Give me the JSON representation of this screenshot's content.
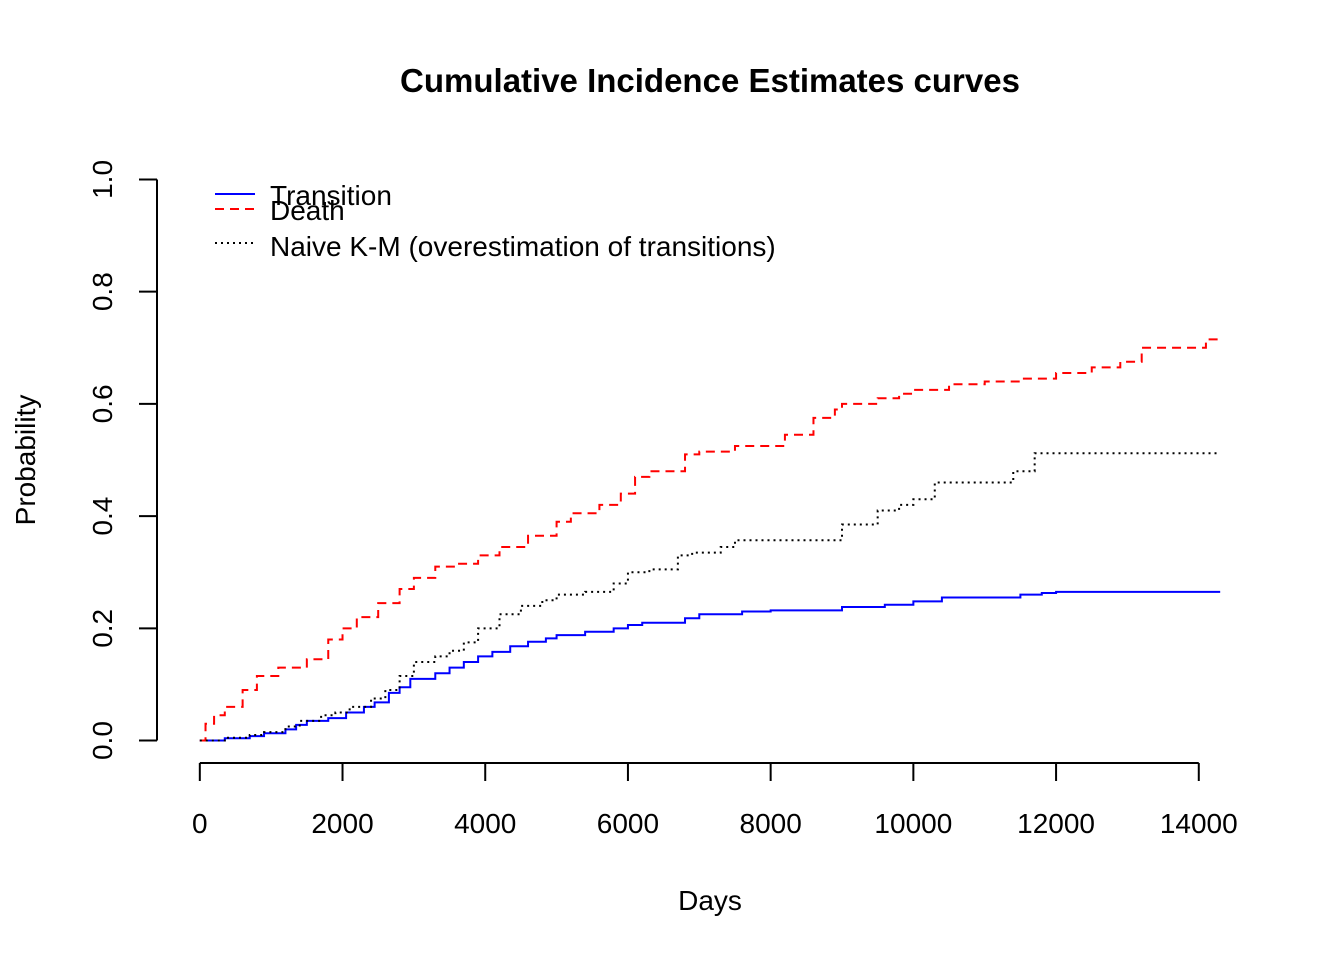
{
  "chart_data": {
    "type": "line",
    "title": "Cumulative Incidence Estimates curves",
    "xlabel": "Days",
    "ylabel": "Probability",
    "xlim": [
      -600,
      14900
    ],
    "ylim": [
      -0.04,
      1.04
    ],
    "x_ticks": [
      0,
      2000,
      4000,
      6000,
      8000,
      10000,
      12000,
      14000
    ],
    "x_tick_labels": [
      "0",
      "2000",
      "4000",
      "6000",
      "8000",
      "10000",
      "12000",
      "14000"
    ],
    "y_ticks": [
      0.0,
      0.2,
      0.4,
      0.6,
      0.8,
      1.0
    ],
    "y_tick_labels": [
      "0.0",
      "0.2",
      "0.4",
      "0.6",
      "0.8",
      "1.0"
    ],
    "grid": false,
    "legend_position": "top-left",
    "step": true,
    "series": [
      {
        "name": "Transition",
        "color": "#0000ff",
        "dash": "solid",
        "x": [
          0,
          350,
          700,
          900,
          1200,
          1350,
          1500,
          1800,
          2050,
          2300,
          2450,
          2650,
          2800,
          2950,
          3300,
          3500,
          3700,
          3900,
          4100,
          4350,
          4600,
          4850,
          5000,
          5400,
          5800,
          6000,
          6200,
          6800,
          7000,
          7600,
          8000,
          9000,
          9600,
          10000,
          10400,
          11500,
          11800,
          12000,
          14300
        ],
        "y": [
          0.0,
          0.004,
          0.008,
          0.013,
          0.02,
          0.028,
          0.035,
          0.04,
          0.05,
          0.06,
          0.068,
          0.085,
          0.095,
          0.11,
          0.12,
          0.13,
          0.14,
          0.15,
          0.158,
          0.168,
          0.176,
          0.182,
          0.188,
          0.194,
          0.2,
          0.206,
          0.21,
          0.218,
          0.225,
          0.23,
          0.232,
          0.238,
          0.242,
          0.248,
          0.255,
          0.26,
          0.263,
          0.265,
          0.265
        ]
      },
      {
        "name": "Death",
        "color": "#ff0000",
        "dash": "dashed",
        "x": [
          0,
          80,
          200,
          350,
          600,
          800,
          1100,
          1500,
          1800,
          2000,
          2200,
          2500,
          2800,
          3000,
          3300,
          3600,
          3900,
          4200,
          4600,
          5000,
          5200,
          5600,
          5900,
          6100,
          6300,
          6800,
          7000,
          7500,
          8200,
          8600,
          8900,
          9000,
          9500,
          9800,
          10000,
          10500,
          11000,
          11500,
          12000,
          12500,
          12900,
          13200,
          13500,
          14000,
          14100,
          14300
        ],
        "y": [
          0.0,
          0.03,
          0.045,
          0.06,
          0.09,
          0.115,
          0.13,
          0.145,
          0.18,
          0.2,
          0.22,
          0.245,
          0.27,
          0.29,
          0.31,
          0.315,
          0.33,
          0.345,
          0.365,
          0.39,
          0.405,
          0.42,
          0.44,
          0.47,
          0.48,
          0.51,
          0.515,
          0.525,
          0.545,
          0.575,
          0.59,
          0.6,
          0.61,
          0.618,
          0.625,
          0.635,
          0.64,
          0.645,
          0.655,
          0.665,
          0.675,
          0.7,
          0.7,
          0.7,
          0.715,
          0.715
        ]
      },
      {
        "name": "Naive K-M (overestimation of transitions)",
        "color": "#000000",
        "dash": "dotted",
        "x": [
          0,
          350,
          700,
          900,
          1200,
          1400,
          1700,
          1900,
          2100,
          2400,
          2600,
          2800,
          3000,
          3300,
          3500,
          3700,
          3900,
          4200,
          4500,
          4800,
          5000,
          5400,
          5800,
          6000,
          6300,
          6700,
          6900,
          7300,
          7500,
          8000,
          8500,
          9000,
          9500,
          9800,
          10000,
          10300,
          10800,
          11400,
          11700,
          12000,
          14300
        ],
        "y": [
          0.0,
          0.005,
          0.01,
          0.015,
          0.025,
          0.035,
          0.045,
          0.05,
          0.06,
          0.075,
          0.09,
          0.115,
          0.14,
          0.15,
          0.16,
          0.175,
          0.2,
          0.225,
          0.24,
          0.25,
          0.26,
          0.265,
          0.28,
          0.3,
          0.305,
          0.33,
          0.335,
          0.345,
          0.357,
          0.357,
          0.357,
          0.385,
          0.41,
          0.42,
          0.43,
          0.46,
          0.46,
          0.48,
          0.512,
          0.512,
          0.512
        ]
      }
    ]
  }
}
